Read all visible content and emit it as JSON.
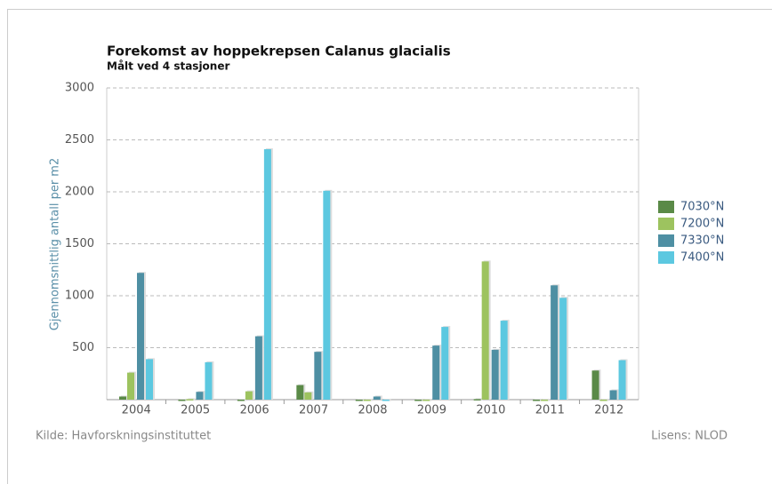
{
  "chart_data": {
    "type": "bar",
    "title": "Forekomst av hoppekrepsen Calanus glacialis",
    "subtitle": "Målt ved 4 stasjoner",
    "y_label": "Gjennomsnittlig antall per m2",
    "source": "Kilde: Havforskningsinstituttet",
    "license": "Lisens: NLOD",
    "categories": [
      "2004",
      "2005",
      "2006",
      "2007",
      "2008",
      "2009",
      "2010",
      "2011",
      "2012"
    ],
    "series": [
      {
        "name": "7030°N",
        "color": "#5a8a47",
        "values": [
          30,
          0,
          0,
          140,
          0,
          0,
          5,
          0,
          280
        ]
      },
      {
        "name": "7200°N",
        "color": "#9dc35f",
        "values": [
          260,
          5,
          80,
          70,
          0,
          0,
          1330,
          0,
          0
        ]
      },
      {
        "name": "7330°N",
        "color": "#4e8fa3",
        "values": [
          1220,
          75,
          610,
          460,
          30,
          520,
          480,
          1100,
          90
        ]
      },
      {
        "name": "7400°N",
        "color": "#5cc8e0",
        "values": [
          390,
          360,
          2410,
          2010,
          0,
          700,
          760,
          980,
          380
        ]
      }
    ],
    "ylim": [
      0,
      3000
    ],
    "yticks": [
      500,
      1000,
      1500,
      2000,
      2500,
      3000
    ],
    "grid": true,
    "legend": "right"
  }
}
